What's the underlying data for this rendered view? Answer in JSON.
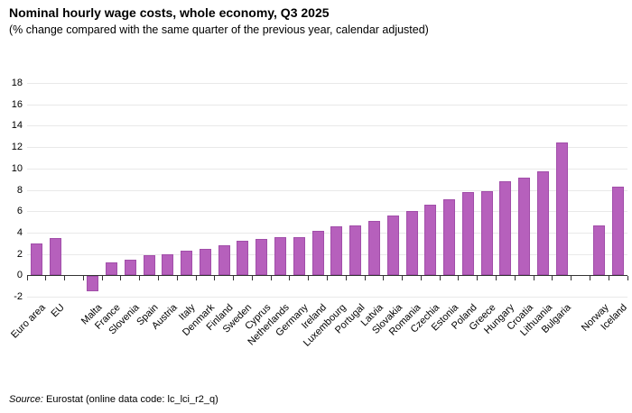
{
  "header": {
    "title": "Nominal hourly wage costs, whole economy, Q3 2025",
    "subtitle": "(% change compared with the same quarter of the previous year, calendar adjusted)"
  },
  "footer": {
    "source_label": "Source:",
    "source_text": "Eurostat (online data code: lc_lci_r2_q)"
  },
  "chart_data": {
    "type": "bar",
    "title": "Nominal hourly wage costs, whole economy, Q3 2025",
    "subtitle": "(% change compared with the same quarter of the previous year, calendar adjusted)",
    "ylim": [
      -2,
      18
    ],
    "ytick_step": 2,
    "grid": true,
    "legend": "none",
    "bar_fill": "#b660bc",
    "bar_border": "#a14ea9",
    "categories": [
      "Euro area",
      "EU",
      "Malta",
      "France",
      "Slovenia",
      "Spain",
      "Austria",
      "Italy",
      "Denmark",
      "Finland",
      "Sweden",
      "Cyprus",
      "Netherlands",
      "Germany",
      "Ireland",
      "Luxembourg",
      "Portugal",
      "Latvia",
      "Slovakia",
      "Romania",
      "Czechia",
      "Estonia",
      "Poland",
      "Greece",
      "Hungary",
      "Croatia",
      "Lithuania",
      "Bulgaria",
      "Norway",
      "Iceland"
    ],
    "values": [
      3.0,
      3.5,
      -1.4,
      1.2,
      1.5,
      1.9,
      2.0,
      2.3,
      2.5,
      2.8,
      3.2,
      3.4,
      3.6,
      3.6,
      4.2,
      4.6,
      4.7,
      5.1,
      5.6,
      6.0,
      6.6,
      7.1,
      7.8,
      7.9,
      8.8,
      9.1,
      9.7,
      12.4,
      4.7,
      8.3
    ],
    "gaps_after": [
      "EU",
      "Bulgaria"
    ]
  }
}
